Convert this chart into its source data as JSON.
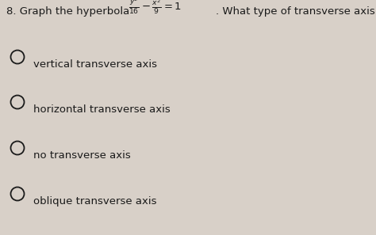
{
  "background_color": "#d8d0c8",
  "options": [
    "vertical transverse axis",
    "horizontal transverse axis",
    "no transverse axis",
    "oblique transverse axis"
  ],
  "title_fontsize": 9.5,
  "option_fontsize": 9.5,
  "text_color": "#1a1a1a",
  "circle_color": "#1a1a1a",
  "fig_width": 4.74,
  "fig_height": 2.97,
  "dpi": 100
}
